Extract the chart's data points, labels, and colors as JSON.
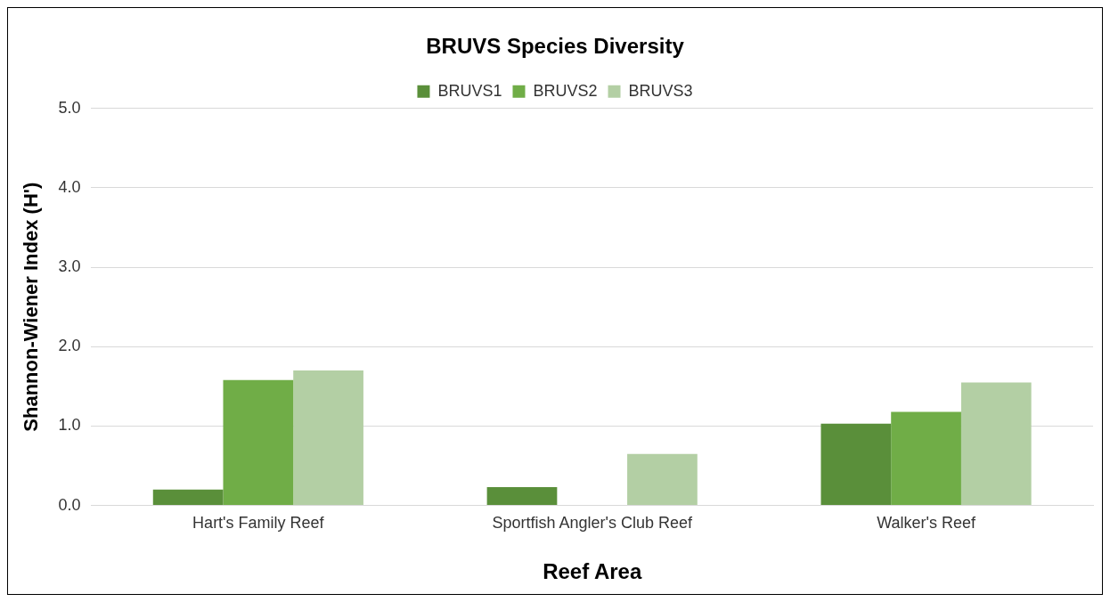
{
  "chart_data": {
    "type": "bar",
    "title": "BRUVS Species Diversity",
    "xlabel": "Reef Area",
    "ylabel": "Shannon-Wiener Index (H')",
    "categories": [
      "Hart's Family Reef",
      "Sportfish Angler's Club Reef",
      "Walker's Reef"
    ],
    "series": [
      {
        "name": "BRUVS1",
        "color": "#5a8f3a",
        "values": [
          0.2,
          0.23,
          1.03
        ]
      },
      {
        "name": "BRUVS2",
        "color": "#70ad47",
        "values": [
          1.58,
          0,
          1.18
        ]
      },
      {
        "name": "BRUVS3",
        "color": "#b3cfa4",
        "values": [
          1.7,
          0.65,
          1.55
        ]
      }
    ],
    "ylim": [
      0,
      5
    ],
    "yticks": [
      {
        "value": 0,
        "label": "0.0"
      },
      {
        "value": 1,
        "label": "1.0"
      },
      {
        "value": 2,
        "label": "2.0"
      },
      {
        "value": 3,
        "label": "3.0"
      },
      {
        "value": 4,
        "label": "4.0"
      },
      {
        "value": 5,
        "label": "5.0"
      }
    ],
    "grid": "y",
    "legend": "top"
  }
}
